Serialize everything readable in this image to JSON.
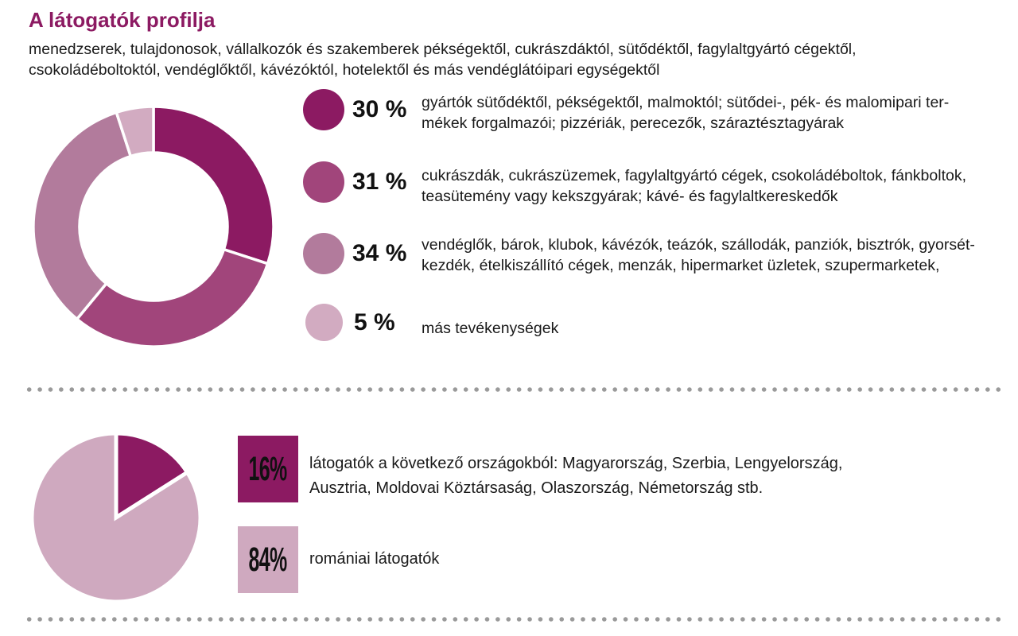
{
  "header": {
    "title": "A látogatók profilja",
    "subtitle_lines": [
      "menedzserek, tulajdonosok, vállalkozók és szakemberek pékségektől, cukrászdáktól, sütődéktől, fagylaltgyártó cégektől,",
      "csokoládéboltoktól, vendéglőktől, kávézóktól, hotelektől és más vendéglátóipari egységektől"
    ]
  },
  "colors": {
    "accent_dark_magenta": "#8c1a62",
    "medium_magenta": "#a1457b",
    "light_mauve": "#b27b9c",
    "pale_pink": "#d2abc1",
    "pie_pale_pink": "#cfa9bf",
    "body_text": "#1a1a1a",
    "divider_dot": "#9a9a9a"
  },
  "chart_data": [
    {
      "type": "pie",
      "subtype": "donut",
      "title": "A látogatók profilja",
      "values": [
        30,
        31,
        34,
        5
      ],
      "unit": "%",
      "labels": [
        "30 %",
        "31 %",
        "34 %",
        "5 %"
      ],
      "colors": [
        "#8c1a62",
        "#a1457b",
        "#b27b9c",
        "#d2abc1"
      ],
      "start_angle_deg": 0,
      "direction": "clockwise",
      "legend_position": "right",
      "legend": [
        {
          "pct": "30 %",
          "lines": [
            "gyártók sütődéktől, pékségektől, malmoktól; sütődei-, pék- és malomipari ter-",
            "mékek forgalmazói; pizzériák, perecezők, száraztésztagyárak"
          ]
        },
        {
          "pct": "31 %",
          "lines": [
            "cukrászdák, cukrászüzemek, fagylaltgyártó cégek, csokoládéboltok, fánkboltok,",
            "teasütemény vagy kekszgyárak; kávé- és fagylaltkereskedők"
          ]
        },
        {
          "pct": "34 %",
          "lines": [
            "vendéglők, bárok, klubok, kávézók, teázók, szállodák, panziók, bisztrók, gyorsét-",
            "kezdék, ételkiszállító cégek, menzák, hipermarket üzletek, szupermarketek,"
          ]
        },
        {
          "pct": "5 %",
          "lines": [
            "más tevékenységek"
          ]
        }
      ]
    },
    {
      "type": "pie",
      "subtype": "pie",
      "title": "",
      "values": [
        16,
        84
      ],
      "unit": "%",
      "labels": [
        "16%",
        "84%"
      ],
      "colors": [
        "#8c1a62",
        "#cfa9bf"
      ],
      "start_angle_deg": 0,
      "direction": "clockwise",
      "legend_position": "right",
      "legend": [
        {
          "pct": "16%",
          "lines": [
            "látogatók a következő országokból: Magyarország, Szerbia, Lengyelország,",
            "Ausztria, Moldovai Köztársaság, Olaszország, Németország stb."
          ]
        },
        {
          "pct": "84%",
          "lines": [
            "romániai látogatók"
          ]
        }
      ]
    }
  ]
}
